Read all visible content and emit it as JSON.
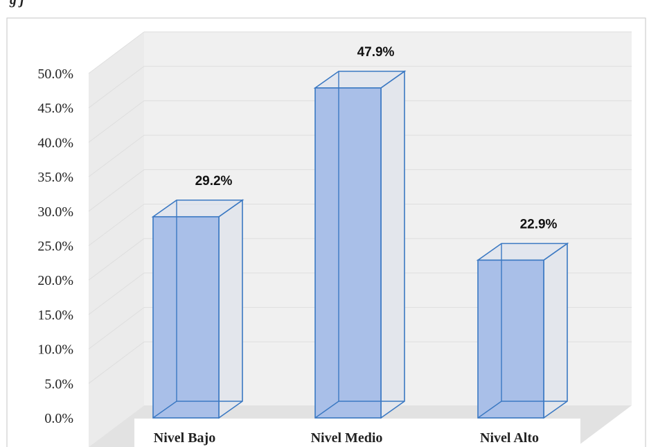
{
  "chart_data": {
    "type": "bar",
    "title": "",
    "xlabel": "",
    "ylabel": "",
    "categories": [
      "Nivel Bajo",
      "Nivel Medio",
      "Nivel Alto"
    ],
    "values": [
      29.2,
      47.9,
      22.9
    ],
    "value_labels": [
      "29.2%",
      "47.9%",
      "22.9%"
    ],
    "ylim": [
      0,
      50
    ],
    "yticks": [
      0,
      5,
      10,
      15,
      20,
      25,
      30,
      35,
      40,
      45,
      50
    ],
    "ytick_labels": [
      "0.0%",
      "5.0%",
      "10.0%",
      "15.0%",
      "20.0%",
      "25.0%",
      "30.0%",
      "35.0%",
      "40.0%",
      "45.0%",
      "50.0%"
    ],
    "grid": true,
    "style": "3d-column",
    "colors": {
      "bar_fill": "#a9bfe8",
      "bar_stroke": "#3a78c2",
      "bar_side": "#e3e6ec",
      "wall": "#ececec",
      "floor": "#e3e3e3",
      "gridline": "#dedede",
      "frame": "#bfbfbf"
    }
  }
}
